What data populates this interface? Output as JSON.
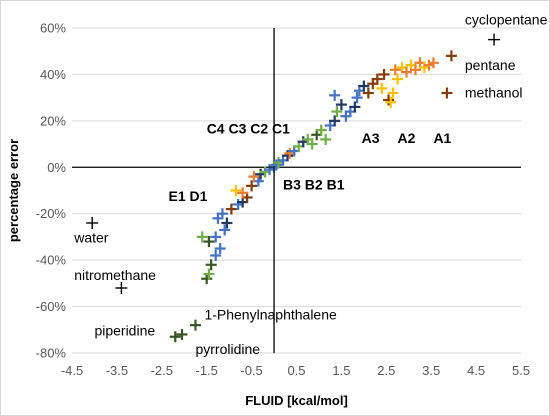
{
  "chart_data": {
    "type": "scatter",
    "title": "",
    "xlabel": "FLUID [kcal/mol]",
    "ylabel": "percentage error",
    "xlim": [
      -4.5,
      5.5
    ],
    "ylim": [
      -80,
      60
    ],
    "xticks": [
      -4.5,
      -3.5,
      -2.5,
      -1.5,
      -0.5,
      0.5,
      1.5,
      2.5,
      3.5,
      4.5,
      5.5
    ],
    "yticks": [
      -80,
      -60,
      -40,
      -20,
      0,
      20,
      40,
      60
    ],
    "xtick_labels": [
      "-4.5",
      "-3.5",
      "-2.5",
      "-1.5",
      "-0.5",
      "0.5",
      "1.5",
      "2.5",
      "3.5",
      "4.5",
      "5.5"
    ],
    "ytick_labels": [
      "-80%",
      "-60%",
      "-40%",
      "-20%",
      "0%",
      "20%",
      "40%",
      "60%"
    ],
    "grid": "horizontal",
    "legend": "none",
    "marker": "+",
    "colors": {
      "green": "#70ad47",
      "darkgreen": "#375623",
      "blue": "#4472c4",
      "darkblue": "#1f3864",
      "orange": "#ed7d31",
      "gold": "#ffc000",
      "brown": "#843c0c",
      "black": "#000000"
    },
    "points": [
      {
        "x": -4.05,
        "y": -24,
        "c": "black"
      },
      {
        "x": -3.4,
        "y": -52,
        "c": "black"
      },
      {
        "x": 4.9,
        "y": 55,
        "c": "black"
      },
      {
        "x": -2.2,
        "y": -73,
        "c": "darkgreen"
      },
      {
        "x": -2.05,
        "y": -72,
        "c": "darkgreen"
      },
      {
        "x": -1.75,
        "y": -68,
        "c": "darkgreen"
      },
      {
        "x": -1.5,
        "y": -48,
        "c": "darkgreen"
      },
      {
        "x": -1.45,
        "y": -46,
        "c": "green"
      },
      {
        "x": -1.4,
        "y": -42,
        "c": "darkgreen"
      },
      {
        "x": -1.3,
        "y": -38,
        "c": "blue"
      },
      {
        "x": -1.2,
        "y": -35,
        "c": "blue"
      },
      {
        "x": -1.6,
        "y": -30,
        "c": "green"
      },
      {
        "x": -1.45,
        "y": -32,
        "c": "darkgreen"
      },
      {
        "x": -1.3,
        "y": -30,
        "c": "blue"
      },
      {
        "x": -1.1,
        "y": -27,
        "c": "blue"
      },
      {
        "x": -1.05,
        "y": -24,
        "c": "darkblue"
      },
      {
        "x": -1.25,
        "y": -22,
        "c": "blue"
      },
      {
        "x": -1.15,
        "y": -20,
        "c": "blue"
      },
      {
        "x": -0.95,
        "y": -18,
        "c": "brown"
      },
      {
        "x": -0.8,
        "y": -16,
        "c": "blue"
      },
      {
        "x": -0.7,
        "y": -15,
        "c": "darkblue"
      },
      {
        "x": -0.6,
        "y": -13,
        "c": "brown"
      },
      {
        "x": -0.7,
        "y": -11,
        "c": "orange"
      },
      {
        "x": -0.85,
        "y": -10,
        "c": "gold"
      },
      {
        "x": -0.5,
        "y": -8,
        "c": "brown"
      },
      {
        "x": -0.35,
        "y": -6,
        "c": "blue"
      },
      {
        "x": -0.45,
        "y": -4,
        "c": "orange"
      },
      {
        "x": -0.3,
        "y": -3,
        "c": "darkblue"
      },
      {
        "x": -0.2,
        "y": -2,
        "c": "green"
      },
      {
        "x": -0.1,
        "y": -1,
        "c": "blue"
      },
      {
        "x": 0.0,
        "y": 0,
        "c": "darkblue"
      },
      {
        "x": 0.05,
        "y": 1,
        "c": "blue"
      },
      {
        "x": 0.1,
        "y": 2,
        "c": "green"
      },
      {
        "x": 0.2,
        "y": 3,
        "c": "blue"
      },
      {
        "x": 0.3,
        "y": 5,
        "c": "darkblue"
      },
      {
        "x": 0.35,
        "y": 6,
        "c": "orange"
      },
      {
        "x": 0.45,
        "y": 7,
        "c": "blue"
      },
      {
        "x": 0.55,
        "y": 9,
        "c": "green"
      },
      {
        "x": 0.65,
        "y": 11,
        "c": "darkblue"
      },
      {
        "x": 0.75,
        "y": 12,
        "c": "green"
      },
      {
        "x": 0.85,
        "y": 10,
        "c": "green"
      },
      {
        "x": 0.95,
        "y": 14,
        "c": "darkgreen"
      },
      {
        "x": 1.05,
        "y": 16,
        "c": "green"
      },
      {
        "x": 1.15,
        "y": 12,
        "c": "green"
      },
      {
        "x": 1.25,
        "y": 18,
        "c": "blue"
      },
      {
        "x": 1.35,
        "y": 20,
        "c": "darkblue"
      },
      {
        "x": 1.4,
        "y": 24,
        "c": "green"
      },
      {
        "x": 1.5,
        "y": 27,
        "c": "darkblue"
      },
      {
        "x": 1.35,
        "y": 31,
        "c": "blue"
      },
      {
        "x": 1.6,
        "y": 22,
        "c": "blue"
      },
      {
        "x": 1.7,
        "y": 24,
        "c": "blue"
      },
      {
        "x": 1.8,
        "y": 26,
        "c": "darkblue"
      },
      {
        "x": 1.85,
        "y": 30,
        "c": "blue"
      },
      {
        "x": 1.9,
        "y": 33,
        "c": "blue"
      },
      {
        "x": 2.0,
        "y": 35,
        "c": "darkblue"
      },
      {
        "x": 2.1,
        "y": 32,
        "c": "brown"
      },
      {
        "x": 2.2,
        "y": 36,
        "c": "brown"
      },
      {
        "x": 2.3,
        "y": 38,
        "c": "brown"
      },
      {
        "x": 2.4,
        "y": 34,
        "c": "gold"
      },
      {
        "x": 2.45,
        "y": 40,
        "c": "brown"
      },
      {
        "x": 2.55,
        "y": 29,
        "c": "brown"
      },
      {
        "x": 2.6,
        "y": 28,
        "c": "gold"
      },
      {
        "x": 2.65,
        "y": 32,
        "c": "gold"
      },
      {
        "x": 2.7,
        "y": 42,
        "c": "orange"
      },
      {
        "x": 2.75,
        "y": 38,
        "c": "gold"
      },
      {
        "x": 2.85,
        "y": 43,
        "c": "gold"
      },
      {
        "x": 2.95,
        "y": 41,
        "c": "orange"
      },
      {
        "x": 3.05,
        "y": 44,
        "c": "gold"
      },
      {
        "x": 3.15,
        "y": 42,
        "c": "orange"
      },
      {
        "x": 3.25,
        "y": 45,
        "c": "orange"
      },
      {
        "x": 3.35,
        "y": 43,
        "c": "gold"
      },
      {
        "x": 3.45,
        "y": 44,
        "c": "orange"
      },
      {
        "x": 3.55,
        "y": 45,
        "c": "orange"
      },
      {
        "x": 3.95,
        "y": 48,
        "c": "brown"
      },
      {
        "x": 3.85,
        "y": 32,
        "c": "brown"
      }
    ],
    "annotations": [
      {
        "text": "cyclopentane",
        "x": 4.25,
        "y": 61.5,
        "weight": "normal"
      },
      {
        "text": "pentane",
        "x": 4.25,
        "y": 42,
        "weight": "normal"
      },
      {
        "text": "methanol",
        "x": 4.25,
        "y": 30,
        "weight": "normal"
      },
      {
        "text": "A1",
        "x": 3.55,
        "y": 10.5,
        "weight": "bold"
      },
      {
        "text": "A2",
        "x": 2.75,
        "y": 10.5,
        "weight": "bold"
      },
      {
        "text": "A3",
        "x": 1.95,
        "y": 10.5,
        "weight": "bold"
      },
      {
        "text": "C4 C3 C2 C1",
        "x": -1.5,
        "y": 14.5,
        "weight": "bold"
      },
      {
        "text": "B3 B2 B1",
        "x": 0.2,
        "y": -9.5,
        "weight": "bold"
      },
      {
        "text": "E1 D1",
        "x": -2.35,
        "y": -14.5,
        "weight": "bold"
      },
      {
        "text": "water",
        "x": -4.45,
        "y": -32.5,
        "weight": "normal"
      },
      {
        "text": "nitromethane",
        "x": -4.45,
        "y": -48.5,
        "weight": "normal"
      },
      {
        "text": "1-Phenylnaphthalene",
        "x": -1.55,
        "y": -65.5,
        "weight": "normal"
      },
      {
        "text": "piperidine",
        "x": -4.0,
        "y": -72.5,
        "weight": "normal"
      },
      {
        "text": "pyrrolidine",
        "x": -1.75,
        "y": -80.5,
        "weight": "normal"
      }
    ]
  }
}
